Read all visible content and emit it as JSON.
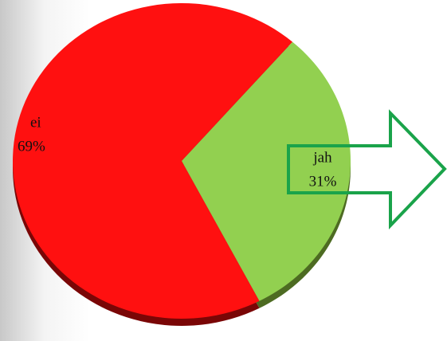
{
  "chart_data": {
    "type": "pie",
    "categories": [
      "ei",
      "jah"
    ],
    "values": [
      69,
      31
    ],
    "value_labels": [
      "69%",
      "31%"
    ],
    "colors": [
      "#ff1010",
      "#92d050"
    ]
  }
}
